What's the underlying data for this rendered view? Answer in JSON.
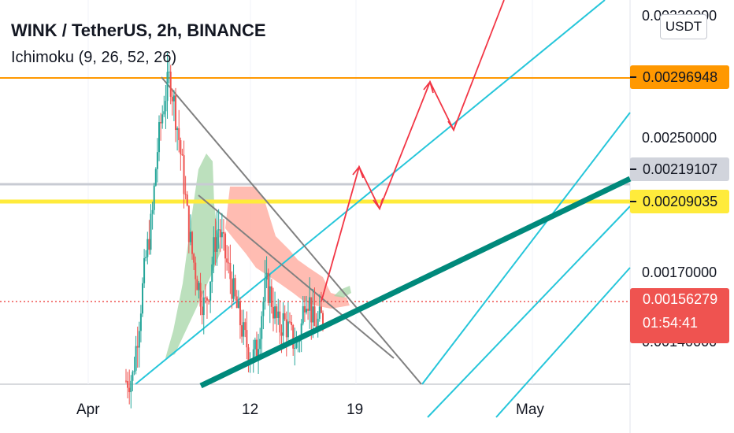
{
  "header": {
    "title": "WINK / TetherUS, 2h, BINANCE",
    "indicator": "Ichimoku (9, 26, 52, 26)"
  },
  "currency_button": "USDT",
  "current_price": {
    "price": "0.00156279",
    "countdown": "01:54:41"
  },
  "price_tags": [
    {
      "label": "0.00296948",
      "bg": "#ff9800",
      "fg": "#131722"
    },
    {
      "label": "0.00219107",
      "bg": "#d1d4dc",
      "fg": "#131722"
    },
    {
      "label": "0.00209035",
      "bg": "#ffeb3b",
      "fg": "#131722"
    }
  ],
  "axis": {
    "y_ticks": [
      "0.00250000",
      "0.00170000"
    ],
    "y_ticks_partial": [
      "0.00330000",
      "0.00140000"
    ],
    "x_ticks": [
      "Apr",
      "12",
      "19",
      "May"
    ]
  },
  "colors": {
    "up": "#26a69a",
    "down": "#ef5350",
    "trend": "#00897b",
    "channel": "#26c6da",
    "wedge": "#808080",
    "projection": "#f23645",
    "cloud_bull": "#a5d6a7",
    "cloud_bear": "#ffab9f"
  },
  "chart_data": {
    "type": "candlestick",
    "symbol": "WINK / TetherUS",
    "interval": "2h",
    "exchange": "BINANCE",
    "indicator": "Ichimoku (9, 26, 52, 26)",
    "ylim": [
      0.00118,
      0.0034
    ],
    "horizontal_levels": [
      0.00296948,
      0.00219107,
      0.00209035
    ],
    "current_price": 0.00156279,
    "x_ticks": [
      "Apr",
      "12",
      "19",
      "May"
    ],
    "price_path": [
      [
        0,
        0.0012
      ],
      [
        3,
        0.00122
      ],
      [
        6,
        0.00155
      ],
      [
        9,
        0.0019
      ],
      [
        12,
        0.00215
      ],
      [
        14,
        0.0025
      ],
      [
        16,
        0.0027
      ],
      [
        18,
        0.00285
      ],
      [
        20,
        0.00296
      ],
      [
        22,
        0.0028
      ],
      [
        24,
        0.00262
      ],
      [
        26,
        0.0024
      ],
      [
        28,
        0.00215
      ],
      [
        30,
        0.00195
      ],
      [
        32,
        0.00182
      ],
      [
        34,
        0.0017
      ],
      [
        36,
        0.00162
      ],
      [
        38,
        0.00175
      ],
      [
        40,
        0.00195
      ],
      [
        42,
        0.0021
      ],
      [
        44,
        0.002
      ],
      [
        46,
        0.00188
      ],
      [
        48,
        0.00178
      ],
      [
        50,
        0.00165
      ],
      [
        52,
        0.00155
      ],
      [
        54,
        0.00145
      ],
      [
        56,
        0.00138
      ],
      [
        58,
        0.00133
      ],
      [
        60,
        0.0014
      ],
      [
        62,
        0.0016
      ],
      [
        64,
        0.00175
      ],
      [
        66,
        0.0017
      ],
      [
        68,
        0.00158
      ],
      [
        70,
        0.0015
      ],
      [
        72,
        0.00155
      ],
      [
        74,
        0.0015
      ],
      [
        76,
        0.00144
      ],
      [
        78,
        0.0014
      ],
      [
        80,
        0.0015
      ],
      [
        82,
        0.00172
      ],
      [
        84,
        0.00165
      ],
      [
        86,
        0.0015
      ],
      [
        88,
        0.00154
      ],
      [
        90,
        0.00157
      ]
    ]
  }
}
